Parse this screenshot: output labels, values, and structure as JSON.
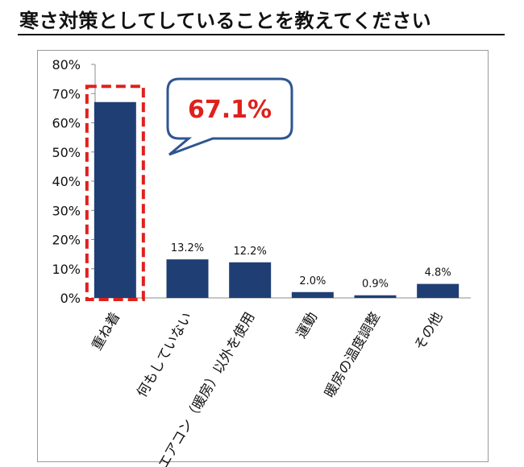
{
  "title": "寒さ対策としてしていることを教えてください",
  "colors": {
    "bar": "#1f3f74",
    "highlight": "#e0201b",
    "callout_border": "#2e5591"
  },
  "callout": {
    "text": "67.1%"
  },
  "chart_data": {
    "type": "bar",
    "title": "",
    "xlabel": "",
    "ylabel": "",
    "categories": [
      "重ね着",
      "何もしていない",
      "エアコン（暖房）以外を使用",
      "運動",
      "暖房の温度調整",
      "その他"
    ],
    "values": [
      67.1,
      13.2,
      12.2,
      2.0,
      0.9,
      4.8
    ],
    "data_labels": [
      "",
      "13.2%",
      "12.2%",
      "2.0%",
      "0.9%",
      "4.8%"
    ],
    "ylim": [
      0,
      80
    ],
    "yticks": [
      "0%",
      "10%",
      "20%",
      "30%",
      "40%",
      "50%",
      "60%",
      "70%",
      "80%"
    ],
    "grid": false,
    "highlight_index": 0
  }
}
